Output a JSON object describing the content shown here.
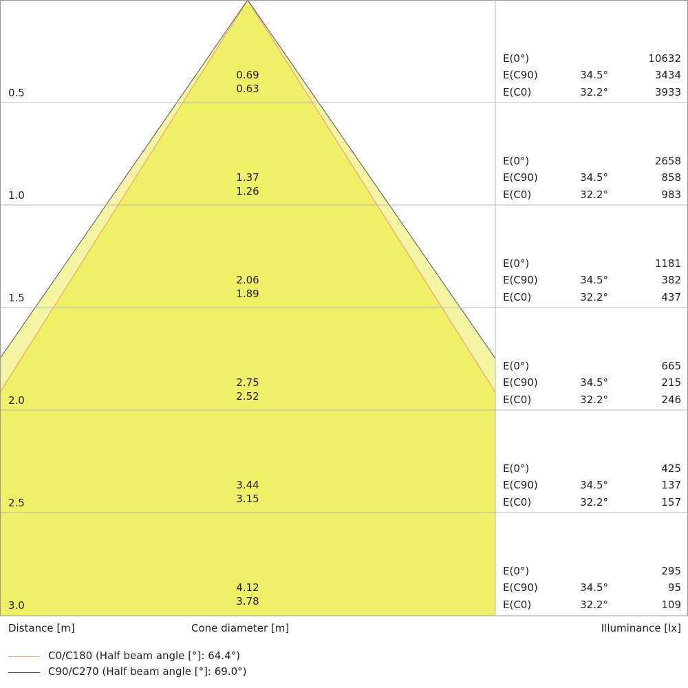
{
  "colors": {
    "inner_fill": "#eef065",
    "outer_fill": "#f4f5a2",
    "c0_line": "#f4a36a",
    "c90_line": "#555555",
    "grid": "#bbbbbb"
  },
  "rows": [
    {
      "distance": "0.5",
      "c90_diameter": "0.69",
      "c0_diameter": "0.63",
      "e0_label": "E(0°)",
      "e0": "10632",
      "ec90_label": "E(C90)",
      "ec90_angle": "34.5°",
      "ec90": "3434",
      "ec0_label": "E(C0)",
      "ec0_angle": "32.2°",
      "ec0": "3933"
    },
    {
      "distance": "1.0",
      "c90_diameter": "1.37",
      "c0_diameter": "1.26",
      "e0_label": "E(0°)",
      "e0": "2658",
      "ec90_label": "E(C90)",
      "ec90_angle": "34.5°",
      "ec90": "858",
      "ec0_label": "E(C0)",
      "ec0_angle": "32.2°",
      "ec0": "983"
    },
    {
      "distance": "1.5",
      "c90_diameter": "2.06",
      "c0_diameter": "1.89",
      "e0_label": "E(0°)",
      "e0": "1181",
      "ec90_label": "E(C90)",
      "ec90_angle": "34.5°",
      "ec90": "382",
      "ec0_label": "E(C0)",
      "ec0_angle": "32.2°",
      "ec0": "437"
    },
    {
      "distance": "2.0",
      "c90_diameter": "2.75",
      "c0_diameter": "2.52",
      "e0_label": "E(0°)",
      "e0": "665",
      "ec90_label": "E(C90)",
      "ec90_angle": "34.5°",
      "ec90": "215",
      "ec0_label": "E(C0)",
      "ec0_angle": "32.2°",
      "ec0": "246"
    },
    {
      "distance": "2.5",
      "c90_diameter": "3.44",
      "c0_diameter": "3.15",
      "e0_label": "E(0°)",
      "e0": "425",
      "ec90_label": "E(C90)",
      "ec90_angle": "34.5°",
      "ec90": "137",
      "ec0_label": "E(C0)",
      "ec0_angle": "32.2°",
      "ec0": "157"
    },
    {
      "distance": "3.0",
      "c90_diameter": "4.12",
      "c0_diameter": "3.78",
      "e0_label": "E(0°)",
      "e0": "295",
      "ec90_label": "E(C90)",
      "ec90_angle": "34.5°",
      "ec90": "95",
      "ec0_label": "E(C0)",
      "ec0_angle": "32.2°",
      "ec0": "109"
    }
  ],
  "axis_labels": {
    "distance": "Distance [m]",
    "cone": "Cone diameter [m]",
    "illuminance": "Illuminance [lx]"
  },
  "legend": [
    {
      "label": "C0/C180 (Half beam angle [°]: 64.4°)",
      "half_beam_angle": 64.4
    },
    {
      "label": "C90/C270 (Half beam angle [°]: 69.0°)",
      "half_beam_angle": 69.0
    }
  ]
}
